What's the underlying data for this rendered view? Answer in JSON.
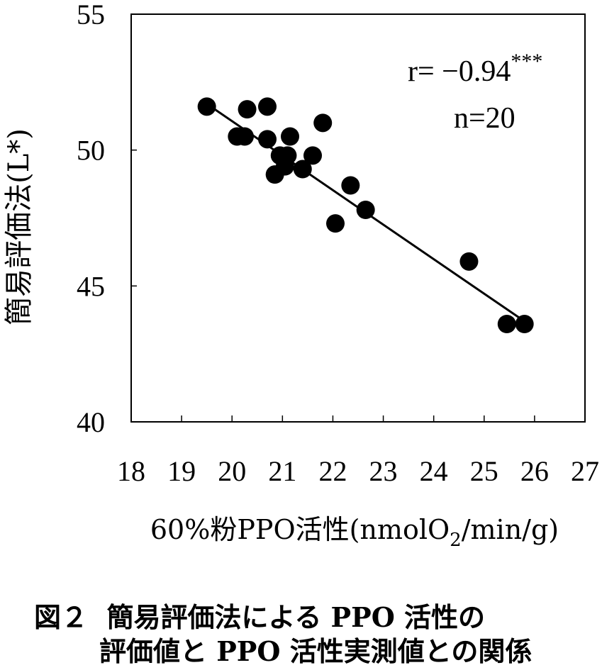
{
  "chart_data": {
    "type": "scatter",
    "xlabel_main": "60%粉PPO活性(nmolO",
    "xlabel_sub": "2",
    "xlabel_tail": "/min/g)",
    "ylabel": "簡易評価法(L*)",
    "xlim": [
      18,
      27
    ],
    "ylim": [
      40,
      55
    ],
    "x_ticks": [
      18,
      19,
      20,
      21,
      22,
      23,
      24,
      25,
      26,
      27
    ],
    "y_ticks": [
      40,
      45,
      50,
      55
    ],
    "grid": false,
    "stat_r": "r= −0.94",
    "stat_r_sup": "***",
    "stat_n": "n=20",
    "points": [
      {
        "x": 19.5,
        "y": 51.6
      },
      {
        "x": 20.1,
        "y": 50.5
      },
      {
        "x": 20.25,
        "y": 50.5
      },
      {
        "x": 20.3,
        "y": 51.5
      },
      {
        "x": 20.7,
        "y": 51.6
      },
      {
        "x": 20.7,
        "y": 50.4
      },
      {
        "x": 20.85,
        "y": 49.1
      },
      {
        "x": 20.95,
        "y": 49.8
      },
      {
        "x": 21.05,
        "y": 49.4
      },
      {
        "x": 21.1,
        "y": 49.8
      },
      {
        "x": 21.15,
        "y": 50.5
      },
      {
        "x": 21.4,
        "y": 49.3
      },
      {
        "x": 21.6,
        "y": 49.8
      },
      {
        "x": 21.8,
        "y": 51.0
      },
      {
        "x": 22.05,
        "y": 47.3
      },
      {
        "x": 22.35,
        "y": 48.7
      },
      {
        "x": 22.65,
        "y": 47.8
      },
      {
        "x": 24.7,
        "y": 45.9
      },
      {
        "x": 25.45,
        "y": 43.6
      },
      {
        "x": 25.8,
        "y": 43.6
      }
    ],
    "regression_line": {
      "x": [
        19.5,
        25.8
      ],
      "y": [
        51.7,
        43.7
      ]
    }
  },
  "caption": {
    "line1": "図２  簡易評価法による PPO 活性の",
    "line2": "評価値と PPO 活性実測値との関係"
  }
}
